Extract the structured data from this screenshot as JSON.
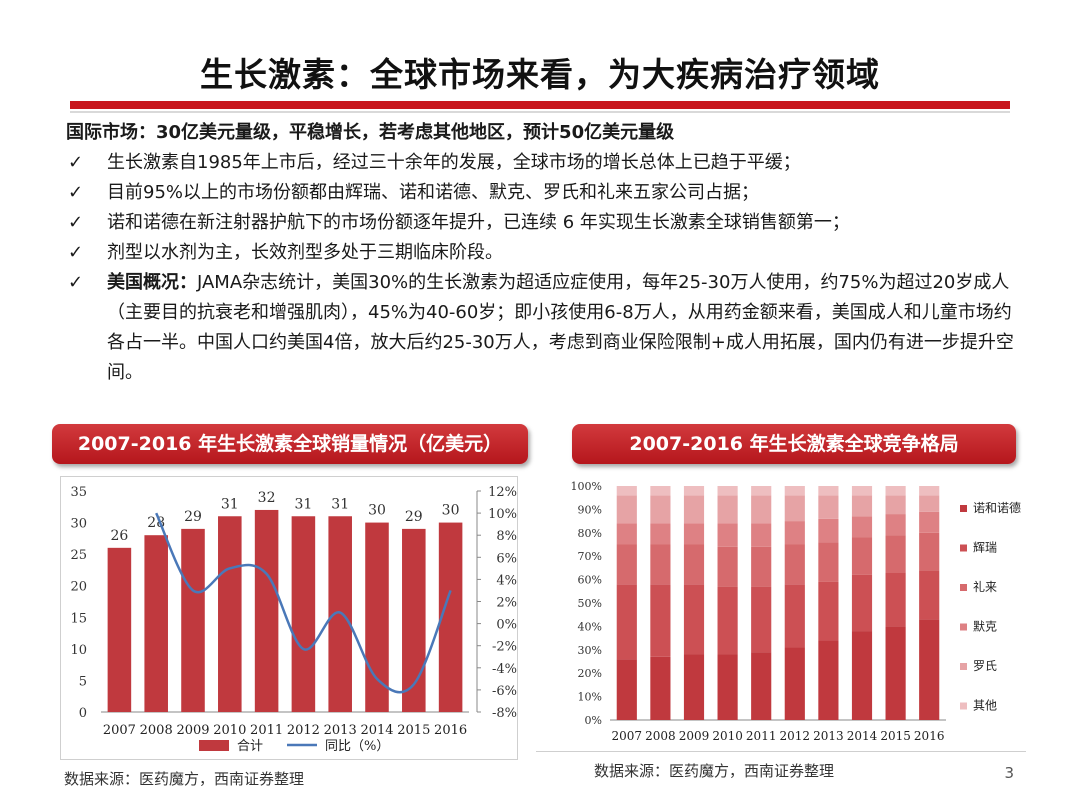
{
  "title": "生长激素：全球市场来看，为大疾病治疗领域",
  "section_head": "国际市场：30亿美元量级，平稳增长，若考虑其他地区，预计50亿美元量级",
  "check_glyph": "✓",
  "bullets": [
    {
      "text": "生长激素自1985年上市后，经过三十余年的发展，全球市场的增长总体上已趋于平缓；"
    },
    {
      "text": "目前95%以上的市场份额都由辉瑞、诺和诺德、默克、罗氏和礼来五家公司占据；"
    },
    {
      "text": "诺和诺德在新注射器护航下的市场份额逐年提升，已连续 6 年实现生长激素全球销售额第一；"
    },
    {
      "text": "剂型以水剂为主，长效剂型多处于三期临床阶段。"
    },
    {
      "bold": "美国概况：",
      "text": "JAMA杂志统计，美国30%的生长激素为超适应症使用，每年25-30万人使用，约75%为超过20岁成人（主要目的抗衰老和增强肌肉），45%为40-60岁；即小孩使用6-8万人，从用药金额来看，美国成人和儿童市场约各占一半。中国人口约美国4倍，放大后约25-30万人，考虑到商业保险限制+成人用拓展，国内仍有进一步提升空间。"
    }
  ],
  "left_chart_title": "2007-2016 年生长激素全球销量情况（亿美元）",
  "right_chart_title": "2007-2016 年生长激素全球竞争格局",
  "left_source": "数据来源：医药魔方，西南证券整理",
  "right_source": "数据来源：医药魔方，西南证券整理",
  "page_number": "3",
  "colors": {
    "accent": "#c8161d",
    "bar": "#c0393e"
  },
  "chart_data": [
    {
      "type": "bar",
      "categories": [
        "2007",
        "2008",
        "2009",
        "2010",
        "2011",
        "2012",
        "2013",
        "2014",
        "2015",
        "2016"
      ],
      "series": [
        {
          "name": "合计",
          "type": "bar",
          "axis": "left",
          "values": [
            26,
            28,
            29,
            31,
            32,
            31,
            31,
            30,
            29,
            30
          ]
        },
        {
          "name": "同比（%）",
          "type": "line",
          "axis": "right",
          "values": [
            null,
            10,
            3,
            5,
            4.5,
            -2.3,
            1,
            -5,
            -5.5,
            3
          ]
        }
      ],
      "ylim": [
        0,
        35
      ],
      "yticks": [
        0,
        5,
        10,
        15,
        20,
        25,
        30,
        35
      ],
      "y2lim": [
        -8,
        12
      ],
      "y2ticks": [
        "-8%",
        "-6%",
        "-4%",
        "-2%",
        "0%",
        "2%",
        "4%",
        "6%",
        "8%",
        "10%",
        "12%"
      ],
      "legend_position": "bottom",
      "grid": false
    },
    {
      "type": "bar",
      "stacked": true,
      "percent": true,
      "categories": [
        "2007",
        "2008",
        "2009",
        "2010",
        "2011",
        "2012",
        "2013",
        "2014",
        "2015",
        "2016"
      ],
      "series": [
        {
          "name": "诺和诺德",
          "values": [
            26,
            27,
            28,
            28,
            29,
            31,
            34,
            38,
            40,
            43
          ]
        },
        {
          "name": "辉瑞",
          "values": [
            32,
            31,
            30,
            29,
            28,
            27,
            25,
            24,
            23,
            21
          ]
        },
        {
          "name": "礼来",
          "values": [
            17,
            17,
            17,
            17,
            17,
            17,
            17,
            16,
            16,
            16
          ]
        },
        {
          "name": "默克",
          "values": [
            9,
            9,
            9,
            10,
            10,
            10,
            10,
            9,
            9,
            9
          ]
        },
        {
          "name": "罗氏",
          "values": [
            12,
            12,
            12,
            12,
            12,
            11,
            10,
            9,
            8,
            7
          ]
        },
        {
          "name": "其他",
          "values": [
            4,
            4,
            4,
            4,
            4,
            4,
            4,
            4,
            4,
            4
          ]
        }
      ],
      "ylim": [
        0,
        100
      ],
      "yticks": [
        "0%",
        "10%",
        "20%",
        "30%",
        "40%",
        "50%",
        "60%",
        "70%",
        "80%",
        "90%",
        "100%"
      ],
      "series_colors": [
        "#c0393e",
        "#cc5054",
        "#d66a6d",
        "#de8184",
        "#e6a3a5",
        "#eebec0"
      ],
      "legend_position": "right",
      "grid": false
    }
  ]
}
